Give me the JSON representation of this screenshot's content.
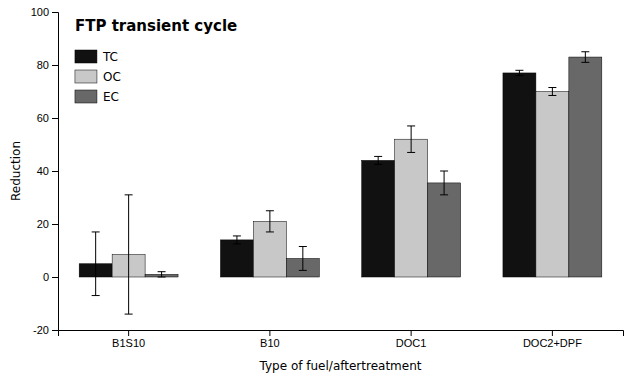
{
  "chart_data": {
    "type": "bar",
    "title": "FTP transient cycle",
    "xlabel": "Type of fuel/aftertreatment",
    "ylabel": "Reduction",
    "categories": [
      "B1S10",
      "B10",
      "DOC1",
      "DOC2+DPF"
    ],
    "series": [
      {
        "name": "TC",
        "color": "#111111",
        "values": [
          5.0,
          14.0,
          44.0,
          77.0
        ],
        "errors": [
          12.0,
          1.5,
          1.5,
          1.0
        ]
      },
      {
        "name": "OC",
        "color": "#c8c8c8",
        "values": [
          8.5,
          21.0,
          52.0,
          70.0
        ],
        "errors": [
          22.5,
          4.0,
          5.0,
          1.5
        ]
      },
      {
        "name": "EC",
        "color": "#686868",
        "values": [
          1.0,
          7.0,
          35.5,
          83.0
        ],
        "errors": [
          1.0,
          4.5,
          4.5,
          2.0
        ]
      }
    ],
    "ylim": [
      -20,
      100
    ],
    "yticks": [
      -20,
      0,
      20,
      40,
      60,
      80,
      100
    ],
    "grid": false,
    "legend": "upper left"
  }
}
